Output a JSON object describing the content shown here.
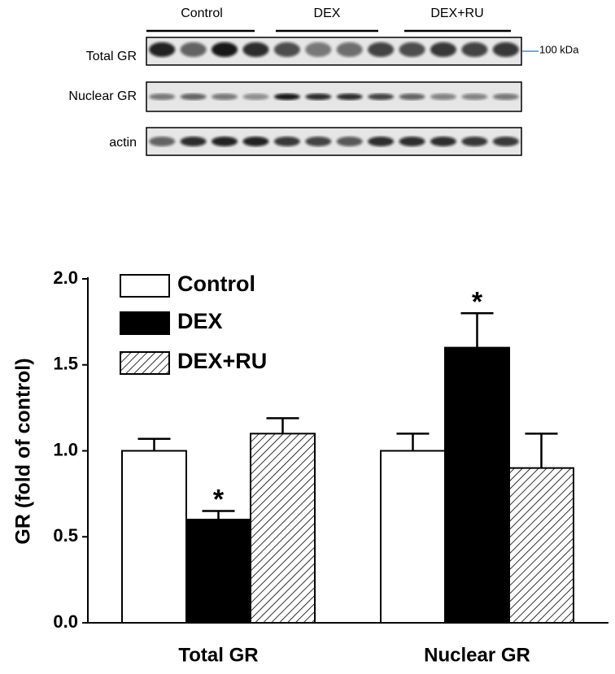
{
  "blot": {
    "groups": [
      "Control",
      "DEX",
      "DEX+RU"
    ],
    "rows": [
      "Total GR",
      "Nuclear GR",
      "actin"
    ],
    "marker": "100 kDa"
  },
  "chart_data": {
    "type": "bar",
    "y_label": "GR (fold of control)",
    "categories": [
      "Total GR",
      "Nuclear GR"
    ],
    "series": [
      {
        "name": "Control",
        "color": "#ffffff",
        "values": [
          1.0,
          1.0
        ],
        "errors": [
          0.07,
          0.1
        ]
      },
      {
        "name": "DEX",
        "color": "#000000",
        "values": [
          0.6,
          1.6
        ],
        "errors": [
          0.05,
          0.2
        ]
      },
      {
        "name": "DEX+RU",
        "color": "#ffffff",
        "hatch": true,
        "values": [
          1.1,
          0.9
        ],
        "errors": [
          0.09,
          0.2
        ]
      }
    ],
    "annotations": [
      {
        "text": "*",
        "series": 1,
        "category": 0
      },
      {
        "text": "*",
        "series": 1,
        "category": 1
      }
    ],
    "ylim": [
      0,
      2.0
    ],
    "yticks": [
      {
        "value": 0,
        "label": "0.0"
      },
      {
        "value": 0.5,
        "label": "0.5"
      },
      {
        "value": 1.0,
        "label": "1.0"
      },
      {
        "value": 1.5,
        "label": "1.5"
      },
      {
        "value": 2.0,
        "label": "2.0"
      }
    ],
    "grid": false,
    "legend": "top-left"
  }
}
